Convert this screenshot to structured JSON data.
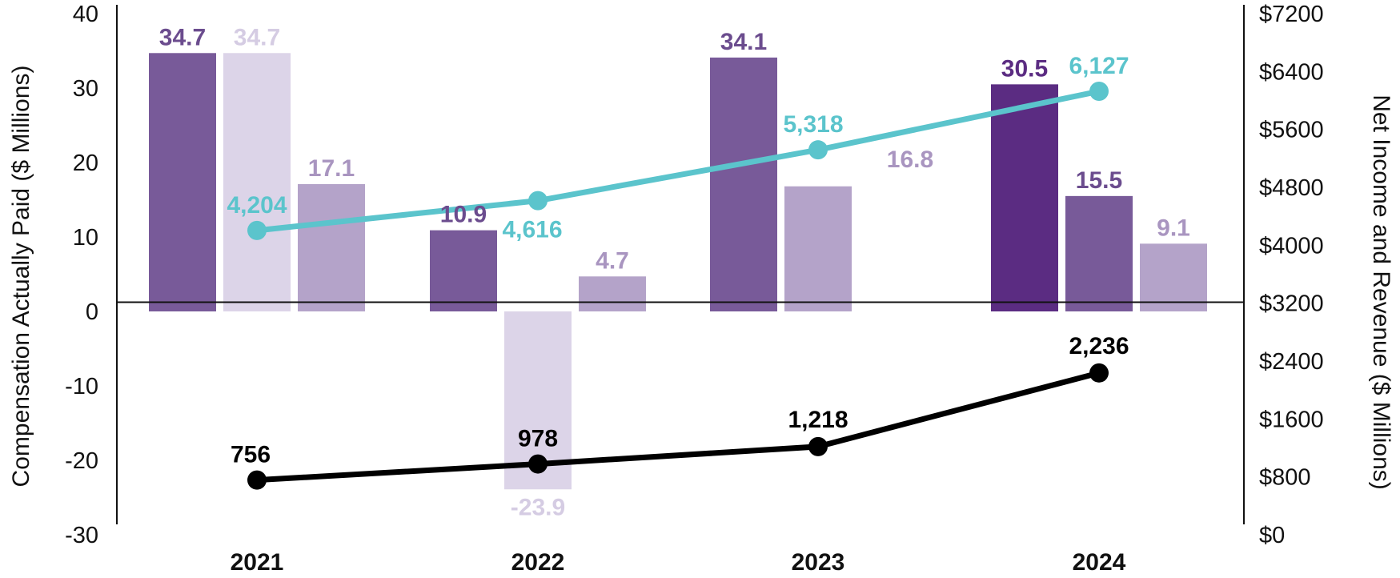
{
  "chart_data": {
    "type": "bar",
    "categories": [
      "2021",
      "2022",
      "2023",
      "2024"
    ],
    "ylabel": "Compensation Actually Paid ($ Millions)",
    "y2label": "Net Income and Revenue ($ Millions)",
    "ylim": [
      -30,
      40
    ],
    "y2lim": [
      0,
      7200
    ],
    "y_ticks": [
      "40",
      "30",
      "20",
      "10",
      "0",
      "-10",
      "-20",
      "-30"
    ],
    "y2_ticks": [
      "$7200",
      "$6400",
      "$5600",
      "$4800",
      "$4000",
      "$3200",
      "$2400",
      "$1600",
      "$800",
      "$0"
    ],
    "bars": [
      {
        "category": "2021",
        "value": 34.7,
        "label": "34.7",
        "color": "#785a99",
        "label_color": "#6b4c8e"
      },
      {
        "category": "2021",
        "value": 34.7,
        "label": "34.7",
        "color": "#dcd4e8",
        "label_color": "#d5cce3"
      },
      {
        "category": "2021",
        "value": 17.1,
        "label": "17.1",
        "color": "#b4a3c9",
        "label_color": "#a995c0"
      },
      {
        "category": "2022",
        "value": 10.9,
        "label": "10.9",
        "color": "#785a99",
        "label_color": "#6b4c8e"
      },
      {
        "category": "2022",
        "value": -23.9,
        "label": "-23.9",
        "color": "#dcd4e8",
        "label_color": "#d5cce3"
      },
      {
        "category": "2022",
        "value": 4.7,
        "label": "4.7",
        "color": "#b4a3c9",
        "label_color": "#a995c0"
      },
      {
        "category": "2023",
        "value": 34.1,
        "label": "34.1",
        "color": "#785a99",
        "label_color": "#6b4c8e"
      },
      {
        "category": "2023",
        "value": 16.8,
        "label": "16.8",
        "color": "#b4a3c9",
        "label_color": "#a995c0"
      },
      {
        "category": "2024",
        "value": 30.5,
        "label": "30.5",
        "color": "#5b2c82",
        "label_color": "#5b2c82"
      },
      {
        "category": "2024",
        "value": 15.5,
        "label": "15.5",
        "color": "#785a99",
        "label_color": "#6b4c8e"
      },
      {
        "category": "2024",
        "value": 9.1,
        "label": "9.1",
        "color": "#b4a3c9",
        "label_color": "#a995c0"
      }
    ],
    "lines": [
      {
        "name": "Revenue",
        "color": "#5bc4cc",
        "axis": "right",
        "values": [
          4204,
          4616,
          5318,
          6127
        ],
        "labels": [
          "4,204",
          "4,616",
          "5,318",
          "6,127"
        ]
      },
      {
        "name": "Net Income",
        "color": "#000000",
        "axis": "right",
        "values": [
          756,
          978,
          1218,
          2236
        ],
        "labels": [
          "756",
          "978",
          "1,218",
          "2,236"
        ]
      }
    ]
  }
}
